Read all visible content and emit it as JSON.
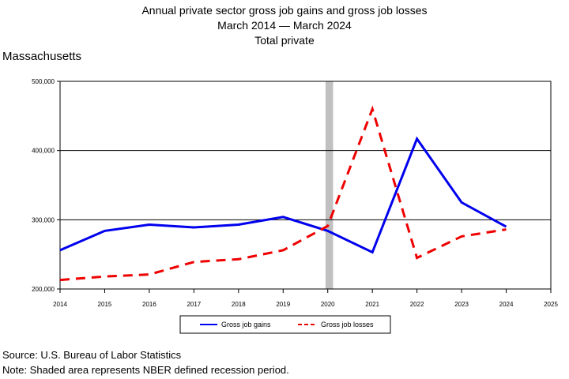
{
  "header": {
    "title_line1": "Annual private sector gross job gains and gross job losses",
    "title_line2": "March 2014 — March 2024",
    "title_line3": "Total private",
    "region": "Massachusetts"
  },
  "footer": {
    "source": "Source: U.S. Bureau of Labor Statistics",
    "note": "Note: Shaded area represents NBER defined recession period."
  },
  "chart_data": {
    "type": "line",
    "x": [
      2014,
      2015,
      2016,
      2017,
      2018,
      2019,
      2020,
      2021,
      2022,
      2023,
      2024
    ],
    "xlim": [
      2014,
      2025
    ],
    "xticks": [
      "2014",
      "2015",
      "2016",
      "2017",
      "2018",
      "2019",
      "2020",
      "2021",
      "2022",
      "2023",
      "2024",
      "2025"
    ],
    "ylim": [
      200000,
      500000
    ],
    "yticks": [
      200000,
      300000,
      400000,
      500000
    ],
    "ytick_labels": [
      "200,000",
      "300,000",
      "400,000",
      "500,000"
    ],
    "grid": "horizontal",
    "legend_position": "bottom",
    "recession": {
      "start": 2019.95,
      "end": 2020.12,
      "color": "#c0c0c0"
    },
    "series": [
      {
        "name": "Gross job gains",
        "color": "#0000ee",
        "style": "solid",
        "values": [
          256000,
          284000,
          293000,
          289000,
          293000,
          304000,
          284000,
          253000,
          417000,
          325000,
          290000
        ]
      },
      {
        "name": "Gross job losses",
        "color": "#ee0000",
        "style": "dashed",
        "values": [
          213000,
          218000,
          221000,
          239000,
          243000,
          256000,
          291000,
          460000,
          245000,
          276000,
          286000
        ]
      }
    ]
  }
}
